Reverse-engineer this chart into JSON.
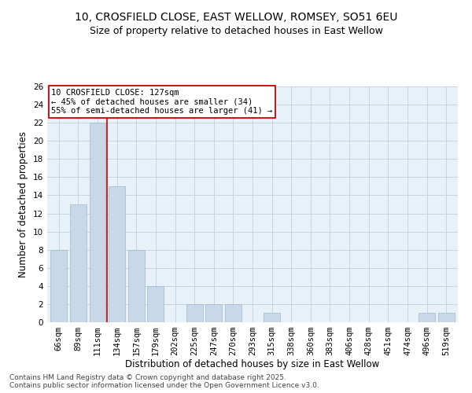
{
  "title1": "10, CROSFIELD CLOSE, EAST WELLOW, ROMSEY, SO51 6EU",
  "title2": "Size of property relative to detached houses in East Wellow",
  "xlabel": "Distribution of detached houses by size in East Wellow",
  "ylabel": "Number of detached properties",
  "categories": [
    "66sqm",
    "89sqm",
    "111sqm",
    "134sqm",
    "157sqm",
    "179sqm",
    "202sqm",
    "225sqm",
    "247sqm",
    "270sqm",
    "293sqm",
    "315sqm",
    "338sqm",
    "360sqm",
    "383sqm",
    "406sqm",
    "428sqm",
    "451sqm",
    "474sqm",
    "496sqm",
    "519sqm"
  ],
  "values": [
    8,
    13,
    22,
    15,
    8,
    4,
    0,
    2,
    2,
    2,
    0,
    1,
    0,
    0,
    0,
    0,
    0,
    0,
    0,
    1,
    1
  ],
  "bar_color": "#c8d8e8",
  "bar_edgecolor": "#a0b8cc",
  "vline_x": 2.5,
  "vline_color": "#cc0000",
  "annotation_text": "10 CROSFIELD CLOSE: 127sqm\n← 45% of detached houses are smaller (34)\n55% of semi-detached houses are larger (41) →",
  "annotation_box_color": "#ffffff",
  "annotation_box_edgecolor": "#cc0000",
  "ylim": [
    0,
    26
  ],
  "yticks": [
    0,
    2,
    4,
    6,
    8,
    10,
    12,
    14,
    16,
    18,
    20,
    22,
    24,
    26
  ],
  "grid_color": "#c0d0e0",
  "bg_color": "#e8f0f8",
  "footer_text": "Contains HM Land Registry data © Crown copyright and database right 2025.\nContains public sector information licensed under the Open Government Licence v3.0.",
  "title_fontsize": 10,
  "subtitle_fontsize": 9,
  "axis_label_fontsize": 8.5,
  "tick_fontsize": 7.5,
  "annotation_fontsize": 7.5,
  "footer_fontsize": 6.5
}
